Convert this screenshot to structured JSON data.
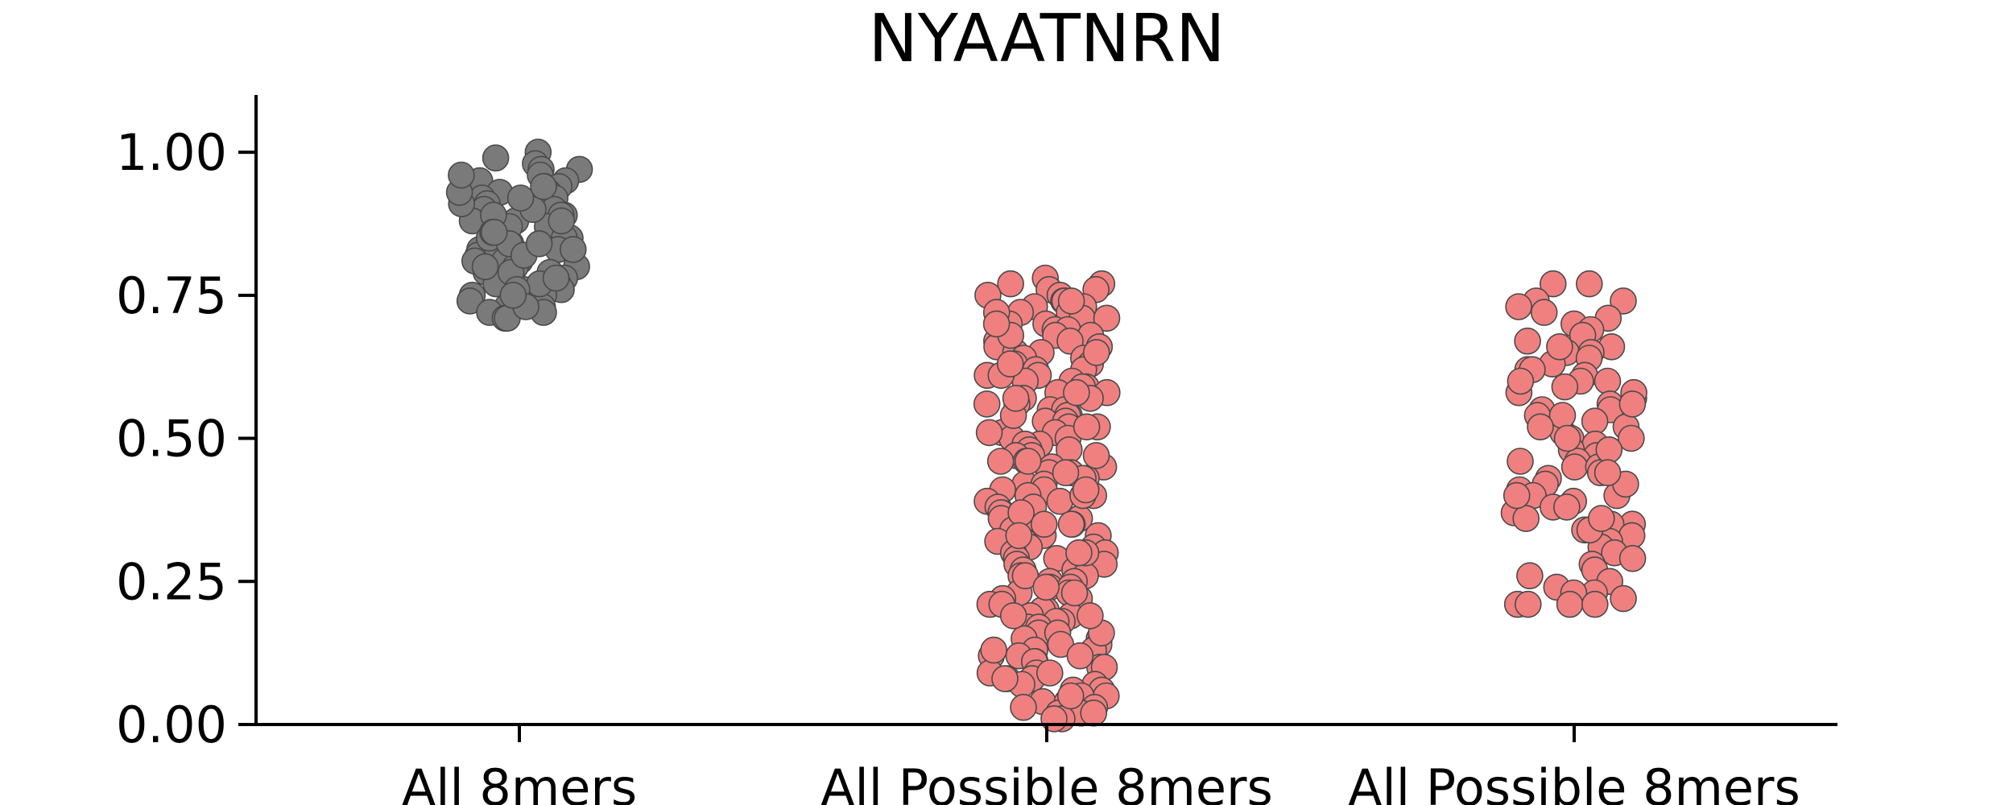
{
  "chart_data": {
    "type": "scatter",
    "subtype": "strip",
    "title": "NYAATNRN",
    "xlabel": "",
    "ylabel": "",
    "categories": [
      "All 8mers",
      "All Possible 8mers",
      "All Possible 8mers"
    ],
    "ylim": [
      0,
      1.1
    ],
    "yticks": [
      0.0,
      0.25,
      0.5,
      0.75,
      1.0
    ],
    "ytick_labels": [
      "0.00",
      "0.25",
      "0.50",
      "0.75",
      "1.00"
    ],
    "grid": false,
    "legend": "none",
    "series": [
      {
        "category_index": 0,
        "color": "#7a7a7a",
        "values": [
          1.0,
          0.99,
          0.98,
          0.97,
          0.97,
          0.96,
          0.95,
          0.95,
          0.94,
          0.94,
          0.93,
          0.93,
          0.92,
          0.92,
          0.91,
          0.91,
          0.9,
          0.9,
          0.89,
          0.89,
          0.88,
          0.88,
          0.87,
          0.87,
          0.86,
          0.86,
          0.85,
          0.85,
          0.84,
          0.84,
          0.83,
          0.83,
          0.82,
          0.82,
          0.81,
          0.81,
          0.8,
          0.8,
          0.79,
          0.79,
          0.78,
          0.78,
          0.77,
          0.77,
          0.76,
          0.76,
          0.75,
          0.75,
          0.74,
          0.74,
          0.73,
          0.73,
          0.72,
          0.72,
          0.71,
          0.71,
          0.87,
          0.83,
          0.79,
          0.91,
          0.85,
          0.81,
          0.77,
          0.93,
          0.89,
          0.86,
          0.84,
          0.8,
          0.78,
          0.76,
          0.82,
          0.88,
          0.9,
          0.94,
          0.96,
          0.73,
          0.75,
          0.92,
          0.84,
          0.86
        ]
      },
      {
        "category_index": 1,
        "color": "#f08080",
        "values": [
          0.78,
          0.77,
          0.77,
          0.76,
          0.76,
          0.75,
          0.75,
          0.74,
          0.74,
          0.73,
          0.73,
          0.72,
          0.72,
          0.71,
          0.71,
          0.7,
          0.7,
          0.69,
          0.69,
          0.68,
          0.68,
          0.67,
          0.67,
          0.66,
          0.66,
          0.65,
          0.65,
          0.64,
          0.64,
          0.63,
          0.63,
          0.62,
          0.62,
          0.61,
          0.61,
          0.6,
          0.6,
          0.59,
          0.59,
          0.58,
          0.58,
          0.57,
          0.57,
          0.56,
          0.56,
          0.55,
          0.55,
          0.54,
          0.54,
          0.53,
          0.53,
          0.52,
          0.52,
          0.51,
          0.51,
          0.5,
          0.5,
          0.49,
          0.49,
          0.48,
          0.48,
          0.47,
          0.47,
          0.46,
          0.46,
          0.45,
          0.45,
          0.44,
          0.44,
          0.43,
          0.43,
          0.42,
          0.42,
          0.41,
          0.41,
          0.4,
          0.4,
          0.39,
          0.39,
          0.38,
          0.38,
          0.37,
          0.37,
          0.36,
          0.36,
          0.35,
          0.35,
          0.34,
          0.34,
          0.33,
          0.33,
          0.32,
          0.32,
          0.31,
          0.31,
          0.3,
          0.3,
          0.29,
          0.29,
          0.28,
          0.28,
          0.27,
          0.27,
          0.26,
          0.26,
          0.25,
          0.25,
          0.24,
          0.24,
          0.23,
          0.23,
          0.22,
          0.22,
          0.21,
          0.21,
          0.2,
          0.2,
          0.19,
          0.19,
          0.18,
          0.18,
          0.17,
          0.17,
          0.16,
          0.16,
          0.15,
          0.15,
          0.14,
          0.14,
          0.13,
          0.13,
          0.12,
          0.12,
          0.11,
          0.11,
          0.1,
          0.1,
          0.09,
          0.09,
          0.08,
          0.08,
          0.07,
          0.07,
          0.06,
          0.06,
          0.05,
          0.05,
          0.04,
          0.04,
          0.03,
          0.03,
          0.02,
          0.02,
          0.01,
          0.01,
          0.72,
          0.65,
          0.58,
          0.51,
          0.44,
          0.37,
          0.3,
          0.23,
          0.16,
          0.09,
          0.02,
          0.68,
          0.61,
          0.54,
          0.47,
          0.4,
          0.33,
          0.26,
          0.19,
          0.12,
          0.05,
          0.74,
          0.63,
          0.52,
          0.41,
          0.3,
          0.19,
          0.08,
          0.7,
          0.57,
          0.46,
          0.35,
          0.24,
          0.13
        ]
      },
      {
        "category_index": 2,
        "color": "#f08080",
        "values": [
          0.77,
          0.77,
          0.74,
          0.74,
          0.73,
          0.72,
          0.71,
          0.7,
          0.69,
          0.68,
          0.67,
          0.66,
          0.65,
          0.65,
          0.64,
          0.63,
          0.62,
          0.61,
          0.6,
          0.6,
          0.59,
          0.58,
          0.57,
          0.56,
          0.55,
          0.55,
          0.54,
          0.53,
          0.52,
          0.51,
          0.5,
          0.5,
          0.49,
          0.48,
          0.47,
          0.46,
          0.45,
          0.45,
          0.44,
          0.43,
          0.42,
          0.41,
          0.4,
          0.4,
          0.39,
          0.38,
          0.37,
          0.36,
          0.35,
          0.35,
          0.34,
          0.33,
          0.32,
          0.31,
          0.3,
          0.29,
          0.28,
          0.27,
          0.26,
          0.25,
          0.24,
          0.23,
          0.23,
          0.22,
          0.21,
          0.21,
          0.21,
          0.21,
          0.62,
          0.58,
          0.54,
          0.5,
          0.46,
          0.42,
          0.38,
          0.34,
          0.56,
          0.48,
          0.44,
          0.66,
          0.52,
          0.36,
          0.6,
          0.4
        ]
      }
    ]
  }
}
